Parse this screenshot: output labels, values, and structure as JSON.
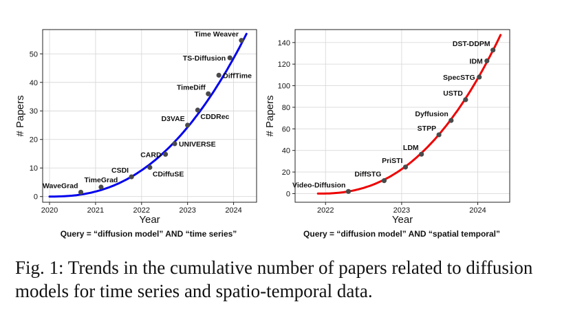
{
  "figure": {
    "caption": "Fig. 1: Trends in the cumulative number of papers related to diffusion models for time series and spatio-temporal data."
  },
  "chart_data": [
    {
      "type": "line",
      "title": "",
      "query": "Query = “diffusion model” AND “time series”",
      "xlabel": "Year",
      "ylabel": "# Papers",
      "xlim": [
        2019.85,
        2024.5
      ],
      "ylim": [
        -2,
        58.5
      ],
      "xticks": [
        2020,
        2021,
        2022,
        2023,
        2024
      ],
      "yticks": [
        0,
        10,
        20,
        30,
        40,
        50
      ],
      "grid": true,
      "line_color": "#0000ee",
      "curve": {
        "x0": 2020.0,
        "x1": 2024.28,
        "y0": 0,
        "y1": 57,
        "exponent": 2.4
      },
      "points": [
        {
          "label": "WaveGrad",
          "x": 2020.68,
          "y": 1.5,
          "label_pos": "above-left"
        },
        {
          "label": "TimeGrad",
          "x": 2021.12,
          "y": 3.3,
          "label_pos": "above"
        },
        {
          "label": "CSDI",
          "x": 2021.78,
          "y": 6.9,
          "label_pos": "above-left"
        },
        {
          "label": "CDiffuSE",
          "x": 2022.18,
          "y": 10.2,
          "label_pos": "below-right"
        },
        {
          "label": "CARD",
          "x": 2022.52,
          "y": 14.8,
          "label_pos": "left"
        },
        {
          "label": "UNIVERSE",
          "x": 2022.72,
          "y": 18.5,
          "label_pos": "right"
        },
        {
          "label": "D3VAE",
          "x": 2023.0,
          "y": 25.0,
          "label_pos": "above-left"
        },
        {
          "label": "CDDRec",
          "x": 2023.22,
          "y": 30.3,
          "label_pos": "below-right"
        },
        {
          "label": "TimeDiff",
          "x": 2023.45,
          "y": 36.0,
          "label_pos": "above-left"
        },
        {
          "label": "DiffTime",
          "x": 2023.68,
          "y": 42.5,
          "label_pos": "right"
        },
        {
          "label": "TS-Diffusion",
          "x": 2023.92,
          "y": 48.6,
          "label_pos": "left"
        },
        {
          "label": "Time Weaver",
          "x": 2024.17,
          "y": 54.7,
          "label_pos": "above-left"
        }
      ]
    },
    {
      "type": "line",
      "title": "",
      "query": "Query = “diffusion model” AND “spatial temporal”",
      "xlabel": "Year",
      "ylabel": "# Papers",
      "xlim": [
        2021.6,
        2024.42
      ],
      "ylim": [
        -8,
        152
      ],
      "xticks": [
        2022,
        2023,
        2024
      ],
      "yticks": [
        0,
        20,
        40,
        60,
        80,
        100,
        120,
        140
      ],
      "grid": true,
      "line_color": "#ee0000",
      "curve": {
        "x0": 2021.9,
        "x1": 2024.3,
        "y0": 0,
        "y1": 147,
        "exponent": 2.4
      },
      "points": [
        {
          "label": "Video-Diffusion",
          "x": 2022.3,
          "y": 2.0,
          "label_pos": "above-left"
        },
        {
          "label": "DiffSTG",
          "x": 2022.77,
          "y": 12.0,
          "label_pos": "above-left"
        },
        {
          "label": "PriSTI",
          "x": 2023.05,
          "y": 24.6,
          "label_pos": "above-left"
        },
        {
          "label": "LDM",
          "x": 2023.26,
          "y": 36.5,
          "label_pos": "above-left"
        },
        {
          "label": "STPP",
          "x": 2023.49,
          "y": 54.5,
          "label_pos": "above-left"
        },
        {
          "label": "Dyffusion",
          "x": 2023.65,
          "y": 67.8,
          "label_pos": "above-left"
        },
        {
          "label": "USTD",
          "x": 2023.84,
          "y": 87.0,
          "label_pos": "above-left"
        },
        {
          "label": "SpecSTG",
          "x": 2024.02,
          "y": 108.0,
          "label_pos": "left"
        },
        {
          "label": "IDM",
          "x": 2024.12,
          "y": 123.0,
          "label_pos": "left"
        },
        {
          "label": "DST-DDPM",
          "x": 2024.2,
          "y": 133.0,
          "label_pos": "above-left"
        }
      ]
    }
  ]
}
